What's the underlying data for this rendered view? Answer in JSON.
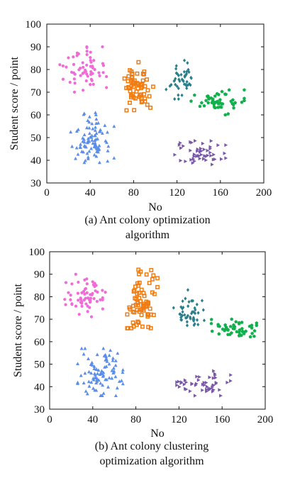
{
  "colors": {
    "pink": "#f06ad8",
    "orange": "#f07c12",
    "teal": "#2a7f8c",
    "green": "#12b04c",
    "blue": "#5b8ee8",
    "purple": "#7a58a8"
  },
  "chart_data": [
    {
      "type": "scatter",
      "caption_line1": "(a) Ant colony optimization",
      "caption_line2": "algorithm",
      "xlabel": "No",
      "ylabel": "Student score / point",
      "xlim": [
        0,
        200
      ],
      "ylim": [
        30,
        100
      ],
      "xticks": [
        "0",
        "40",
        "80",
        "120",
        "160",
        "200"
      ],
      "yticks": [
        "30",
        "40",
        "50",
        "60",
        "70",
        "80",
        "90",
        "100"
      ],
      "grid": false,
      "legend": "none",
      "series": [
        {
          "color_key": "pink",
          "marker": "circle",
          "count": 60,
          "x_range": [
            12,
            55
          ],
          "y_range": [
            70,
            90
          ]
        },
        {
          "color_key": "orange",
          "marker": "square",
          "count": 60,
          "x_range": [
            70,
            98
          ],
          "y_range": [
            62,
            84
          ]
        },
        {
          "color_key": "teal",
          "marker": "diamond",
          "count": 45,
          "x_range": [
            110,
            138
          ],
          "y_range": [
            67,
            84
          ]
        },
        {
          "color_key": "green",
          "marker": "pentagon",
          "count": 50,
          "x_range": [
            133,
            182
          ],
          "y_range": [
            60,
            71
          ]
        },
        {
          "color_key": "blue",
          "marker": "triangle",
          "count": 90,
          "x_range": [
            22,
            62
          ],
          "y_range": [
            39,
            61
          ]
        },
        {
          "color_key": "purple",
          "marker": "tri-right",
          "count": 50,
          "x_range": [
            118,
            165
          ],
          "y_range": [
            37,
            49
          ]
        }
      ]
    },
    {
      "type": "scatter",
      "caption_line1": "(b) Ant colony clustering",
      "caption_line2": "optimization algorithm",
      "xlabel": "No",
      "ylabel": "Student score / point",
      "xlim": [
        0,
        200
      ],
      "ylim": [
        30,
        100
      ],
      "xticks": [
        "0",
        "40",
        "80",
        "120",
        "160",
        "200"
      ],
      "yticks": [
        "30",
        "40",
        "50",
        "60",
        "70",
        "80",
        "90",
        "100"
      ],
      "grid": false,
      "legend": "none",
      "series": [
        {
          "color_key": "pink",
          "marker": "circle",
          "count": 60,
          "x_range": [
            14,
            57
          ],
          "y_range": [
            70,
            90
          ]
        },
        {
          "color_key": "orange",
          "marker": "square",
          "count": 70,
          "x_range": [
            72,
            100
          ],
          "y_range": [
            66,
            92
          ]
        },
        {
          "color_key": "teal",
          "marker": "diamond",
          "count": 45,
          "x_range": [
            115,
            145
          ],
          "y_range": [
            66,
            83
          ]
        },
        {
          "color_key": "green",
          "marker": "pentagon",
          "count": 50,
          "x_range": [
            150,
            192
          ],
          "y_range": [
            62,
            70
          ]
        },
        {
          "color_key": "blue",
          "marker": "triangle",
          "count": 90,
          "x_range": [
            26,
            68
          ],
          "y_range": [
            36,
            57
          ]
        },
        {
          "color_key": "purple",
          "marker": "tri-right",
          "count": 50,
          "x_range": [
            118,
            168
          ],
          "y_range": [
            36,
            47
          ]
        }
      ]
    }
  ]
}
